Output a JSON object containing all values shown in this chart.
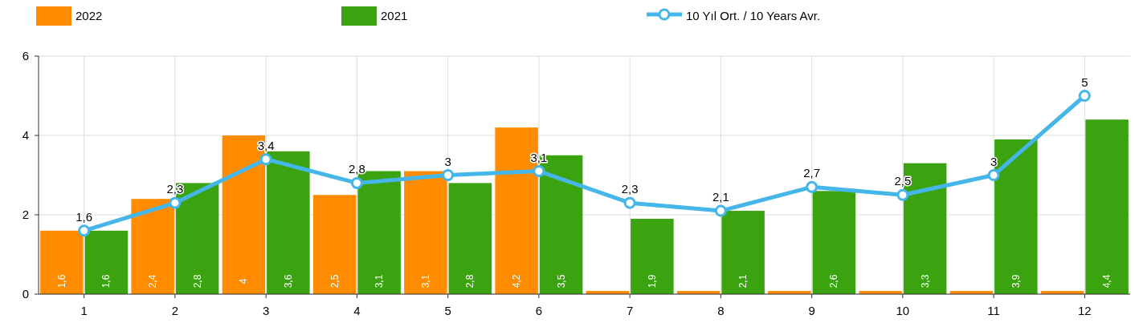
{
  "chart_data": {
    "type": "bar",
    "categories": [
      "1",
      "2",
      "3",
      "4",
      "5",
      "6",
      "7",
      "8",
      "9",
      "10",
      "11",
      "12"
    ],
    "series": [
      {
        "name": "2022",
        "color": "#ff8c00",
        "values": [
          1.6,
          2.4,
          4,
          2.5,
          3.1,
          4.2,
          0.08,
          0.08,
          0.08,
          0.08,
          0.08,
          0.08
        ],
        "value_labels": [
          "1,6",
          "2,4",
          "4",
          "2,5",
          "3,1",
          "4,2",
          null,
          null,
          null,
          null,
          null,
          null
        ]
      },
      {
        "name": "2021",
        "color": "#3aa30f",
        "values": [
          1.6,
          2.8,
          3.6,
          3.1,
          2.8,
          3.5,
          1.9,
          2.1,
          2.6,
          3.3,
          3.9,
          4.4
        ],
        "value_labels": [
          "1,6",
          "2,8",
          "3,6",
          "3,1",
          "2,8",
          "3,5",
          "1,9",
          "2,1",
          "2,6",
          "3,3",
          "3,9",
          "4,4"
        ]
      },
      {
        "name": "10 Yıl Ort. / 10 Years Avr.",
        "type": "line",
        "color": "#45b6ea",
        "marker": "circle",
        "values": [
          1.6,
          2.3,
          3.4,
          2.8,
          3,
          3.1,
          2.3,
          2.1,
          2.7,
          2.5,
          3,
          5
        ],
        "value_labels": [
          "1,6",
          "2,3",
          "3,4",
          "2,8",
          "3",
          "3,1",
          "2,3",
          "2,1",
          "2,7",
          "2,5",
          "3",
          "5"
        ]
      }
    ],
    "ylim": [
      0,
      6
    ],
    "yticks": [
      0,
      2,
      4,
      6
    ],
    "grid": true,
    "legend": "top"
  }
}
